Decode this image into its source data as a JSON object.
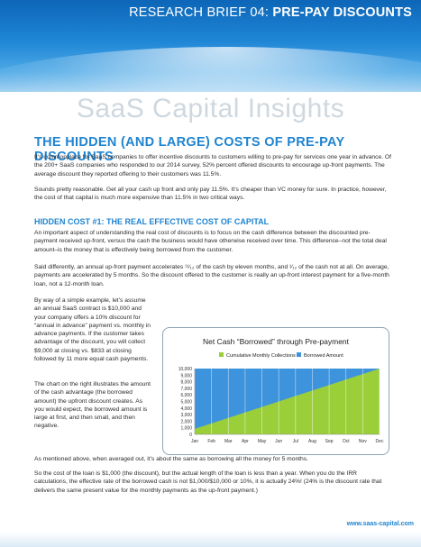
{
  "header": {
    "brief_prefix": "RESEARCH BRIEF 04:",
    "brief_topic": "PRE-PAY DISCOUNTS",
    "brand": "SaaS Capital Insights"
  },
  "article": {
    "headline": "THE HIDDEN (AND LARGE) COSTS OF PRE-PAY DISCOUNTS",
    "p1": "It’s commonplace for SaaS companies to offer incentive discounts to customers willing to pre-pay for services one year in advance. Of the 200+ SaaS companies who responded to our 2014 survey, 52% percent offered discounts to encourage up-front payments. The average discount they reported offering to their customers was 11.5%.",
    "p2": "Sounds pretty reasonable. Get all your cash up front and only pay 11.5%. It’s cheaper than VC money for sure. In practice, however, the cost of that capital is much more expensive than 11.5% in two critical ways.",
    "subhead": "HIDDEN COST #1:  THE REAL EFFECTIVE COST OF CAPITAL",
    "p3": "An important aspect of understanding the real cost of discounts is to focus on the cash difference between the discounted pre-payment received up-front, versus the cash the business would have otherwise received over time. This difference–not the total deal amount–is the money that is effectively being borrowed from the customer.",
    "p4": "Said differently, an annual up-front payment accelerates ¹¹⁄₁₂ of the cash by eleven months, and ¹⁄₁₂ of the cash not at all. On average, payments are accelerated by 5 months. So the discount offered to the customer is really an up-front interest payment for a five-month loan, not a 12-month loan.",
    "p5": "By way of a simple example, let’s assume an annual SaaS contract is $10,000 and your company offers a 10% discount for “annual in advance” payment vs. monthly in advance payments. If the customer takes advantage of the discount, you will collect $9,000 at closing vs. $833 at closing followed by 11 more equal cash payments.",
    "p6": "The chart on the right illustrates the amount of the cash advantage (the borrowed amount) the upfront discount creates. As you would expect, the borrowed amount is large at first, and then small, and then negative.",
    "p7": "As mentioned above, when averaged out, it’s about the same as borrowing all the money for 5 months.",
    "p8": "So the cost of the loan is $1,000 (the discount), but the actual length of the loan is less than a year. When you do the IRR calculations, the effective rate of the borrowed cash is not $1,000/$10,000 or 10%, it is actually 24%! (24% is the discount rate that delivers the same present value for the monthly payments as the up-front payment.)"
  },
  "footer": {
    "url": "www.saas-capital.com"
  },
  "colors": {
    "blue": "#1f84d0",
    "green": "#9bcf3a",
    "fill_blue": "#3d93dc"
  },
  "chart_data": {
    "type": "area",
    "title": "Net Cash “Borrowed” through Pre-payment",
    "categories": [
      "Jan",
      "Feb",
      "Mar",
      "Apr",
      "May",
      "Jun",
      "Jul",
      "Aug",
      "Sep",
      "Oct",
      "Nov",
      "Dec"
    ],
    "series": [
      {
        "name": "Cumulative Monthly Collections",
        "values": [
          833,
          1667,
          2500,
          3333,
          4167,
          5000,
          5833,
          6667,
          7500,
          8333,
          9167,
          10000
        ]
      },
      {
        "name": "Borrowed Amount",
        "values": [
          9000,
          9000,
          9000,
          9000,
          9000,
          9000,
          9000,
          9000,
          9000,
          9000,
          9000,
          9000
        ]
      }
    ],
    "yticks": [
      "10,000",
      "9,000",
      "8,000",
      "7,000",
      "6,000",
      "5,000",
      "4,000",
      "3,000",
      "2,000",
      "1,000",
      "0"
    ],
    "ylim": [
      0,
      10000
    ],
    "legend": "top"
  }
}
